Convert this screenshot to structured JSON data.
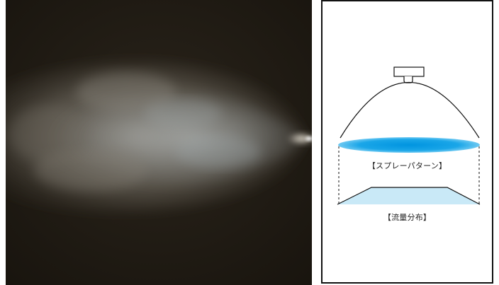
{
  "photo": {
    "background_color": "#1f1a13",
    "spray_color": "#bdb6ab",
    "mist_tint": "#a6b7bf"
  },
  "diagram": {
    "spray_pattern_label": "【スプレーパターン】",
    "flow_distribution_label": "【流量分布】",
    "spray_pattern_color": "#1aa6e8",
    "flow_distribution_color": "#c9e9f7",
    "line_color": "#111111"
  }
}
